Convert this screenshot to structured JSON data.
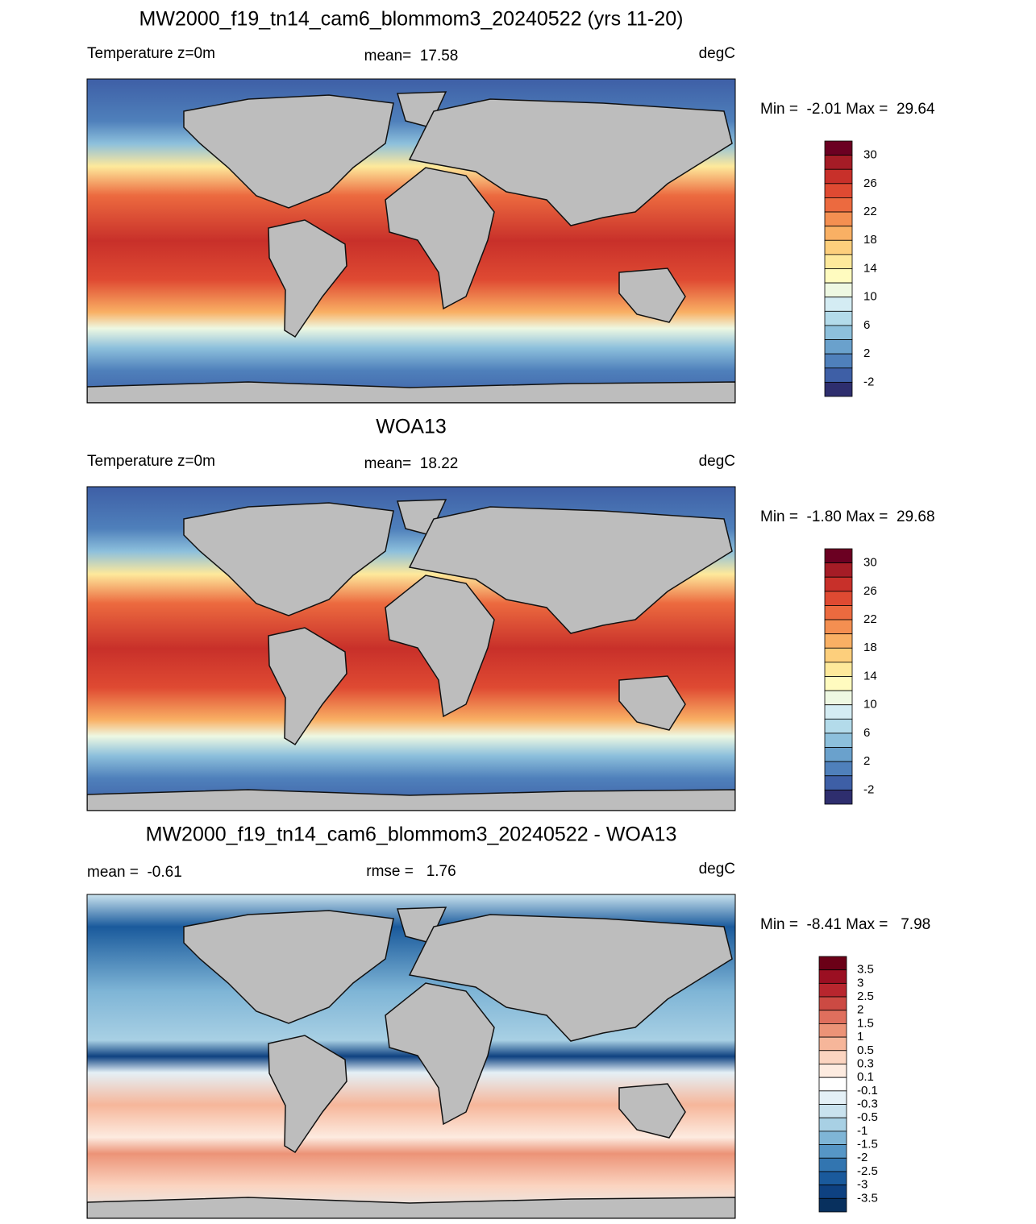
{
  "panels": [
    {
      "title": "MW2000_f19_tn14_cam6_blommom3_20240522 (yrs 11-20)",
      "left_label": "Temperature z=0m",
      "center_label": "mean=  17.58",
      "right_label": "degC",
      "minmax": "Min =  -2.01 Max =  29.64",
      "colorbar": {
        "labels": [
          "30",
          "26",
          "22",
          "18",
          "14",
          "10",
          "6",
          "2",
          "-2"
        ],
        "colors": [
          "#6b0022",
          "#a51c26",
          "#c8302a",
          "#df4a32",
          "#ec6a3f",
          "#f48f51",
          "#f9b064",
          "#fdcf7c",
          "#fee99b",
          "#fffbbf",
          "#eef8e2",
          "#d4ecf3",
          "#b3dbea",
          "#8dc0dc",
          "#6aa1cc",
          "#4f80bb",
          "#3e5fa6",
          "#2e2e6e"
        ]
      }
    },
    {
      "title": "WOA13",
      "left_label": "Temperature z=0m",
      "center_label": "mean=  18.22",
      "right_label": "degC",
      "minmax": "Min =  -1.80 Max =  29.68",
      "colorbar": {
        "labels": [
          "30",
          "26",
          "22",
          "18",
          "14",
          "10",
          "6",
          "2",
          "-2"
        ],
        "colors": [
          "#6b0022",
          "#a51c26",
          "#c8302a",
          "#df4a32",
          "#ec6a3f",
          "#f48f51",
          "#f9b064",
          "#fdcf7c",
          "#fee99b",
          "#fffbbf",
          "#eef8e2",
          "#d4ecf3",
          "#b3dbea",
          "#8dc0dc",
          "#6aa1cc",
          "#4f80bb",
          "#3e5fa6",
          "#2e2e6e"
        ]
      }
    },
    {
      "title": "MW2000_f19_tn14_cam6_blommom3_20240522 - WOA13",
      "left_label": "mean =  -0.61",
      "center_label": "rmse =   1.76",
      "right_label": "degC",
      "minmax": "Min =  -8.41 Max =   7.98",
      "colorbar": {
        "labels": [
          "3.5",
          "3",
          "2.5",
          "2",
          "1.5",
          "1",
          "0.5",
          "0.3",
          "0.1",
          "-0.1",
          "-0.3",
          "-0.5",
          "-1",
          "-1.5",
          "-2",
          "-2.5",
          "-3",
          "-3.5"
        ],
        "colors": [
          "#6b0017",
          "#9b0f22",
          "#b8262e",
          "#cc4a43",
          "#df6f5d",
          "#ec9377",
          "#f6b69a",
          "#fbd4c0",
          "#fdebe0",
          "#ffffff",
          "#e4f0f6",
          "#c9e2ee",
          "#a8d0e4",
          "#7fb5d6",
          "#5696c6",
          "#3275b0",
          "#1a5a9c",
          "#0e4181",
          "#08305e"
        ]
      }
    }
  ]
}
